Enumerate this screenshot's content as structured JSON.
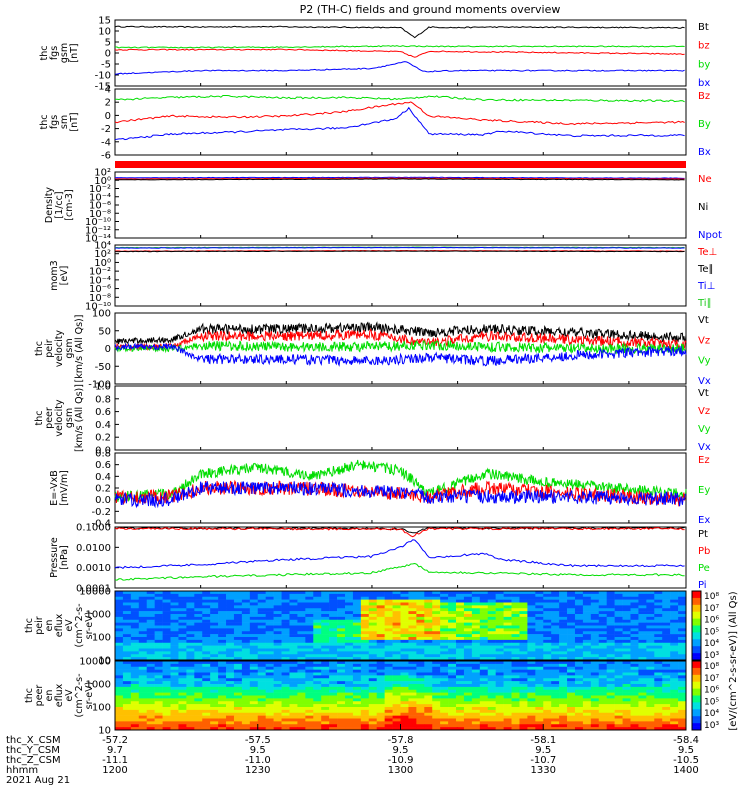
{
  "title": "P2 (TH-C) fields and ground moments overview",
  "colors": {
    "black": "#000000",
    "red": "#ff0000",
    "green": "#00dd00",
    "blue": "#0000ff",
    "lime": "#22cc22"
  },
  "chart_data": [
    {
      "id": "fgs",
      "type": "line",
      "ylabel": [
        "thc",
        "fgs",
        "gsm",
        "[nT]"
      ],
      "yticks": [
        "15",
        "10",
        "5",
        "0",
        "-5",
        "-10",
        "-15"
      ],
      "ylim": [
        -15,
        15
      ],
      "legend": [
        {
          "label": "Bt",
          "color": "#000000"
        },
        {
          "label": "bz",
          "color": "#ff0000"
        },
        {
          "label": "by",
          "color": "#00dd00"
        },
        {
          "label": "bx",
          "color": "#0000ff"
        }
      ],
      "series": [
        {
          "color": "#000000",
          "t": [
            1200,
            1230,
            1250,
            1300,
            1305,
            1310,
            1320,
            1330,
            1400
          ],
          "y": [
            12,
            11.8,
            12,
            11.5,
            7,
            11.8,
            11.5,
            11.8,
            11.5
          ]
        },
        {
          "color": "#ff0000",
          "t": [
            1200,
            1230,
            1260,
            1300,
            1305,
            1310,
            1330,
            1400
          ],
          "y": [
            1.5,
            1.5,
            1.6,
            0.6,
            -2,
            0.8,
            0.5,
            -0.5
          ]
        },
        {
          "color": "#00dd00",
          "t": [
            1200,
            1230,
            1260,
            1300,
            1310,
            1330,
            1400
          ],
          "y": [
            2.5,
            2.5,
            2.7,
            3.2,
            3.0,
            3,
            3
          ]
        },
        {
          "color": "#0000ff",
          "t": [
            1200,
            1230,
            1260,
            1290,
            1302,
            1308,
            1320,
            1360,
            1400
          ],
          "y": [
            -9.5,
            -8,
            -8,
            -7,
            -4,
            -8.5,
            -8,
            -8,
            -8
          ]
        }
      ]
    },
    {
      "id": "fgs-sm",
      "type": "line",
      "ylabel": [
        "thc",
        "fgs",
        "sm",
        "[nT]"
      ],
      "yticks": [
        "4",
        "2",
        "0",
        "-2",
        "-4",
        "-6"
      ],
      "ylim": [
        -7,
        4
      ],
      "legend": [
        {
          "label": "Bz",
          "color": "#ff0000"
        },
        {
          "label": "By",
          "color": "#00dd00"
        },
        {
          "label": "Bx",
          "color": "#0000ff"
        }
      ],
      "series": [
        {
          "color": "#00dd00",
          "t": [
            1200,
            1220,
            1240,
            1260,
            1280,
            1300,
            1310,
            1330,
            1400
          ],
          "y": [
            2.2,
            2.6,
            2.8,
            2.5,
            2.6,
            2.3,
            2.8,
            2.2,
            2.0
          ]
        },
        {
          "color": "#ff0000",
          "t": [
            1200,
            1220,
            1240,
            1260,
            1280,
            1298,
            1304,
            1310,
            1330,
            1360,
            1400
          ],
          "y": [
            -1.5,
            -0.5,
            -0.7,
            -0.5,
            0.2,
            1.5,
            1.8,
            -0.5,
            -1.2,
            -1.8,
            -1.5
          ]
        },
        {
          "color": "#0000ff",
          "t": [
            1200,
            1220,
            1240,
            1260,
            1280,
            1298,
            1303,
            1310,
            1330,
            1335,
            1360,
            1400
          ],
          "y": [
            -4.5,
            -3.5,
            -3.2,
            -2.8,
            -2.5,
            -1,
            0.8,
            -3.5,
            -3.6,
            -3.0,
            -3.8,
            -3.7
          ]
        }
      ]
    },
    {
      "id": "flag-bar",
      "type": "bar",
      "color": "#ff0000"
    },
    {
      "id": "density",
      "type": "line",
      "scale": "log",
      "ylabel": [
        "Density",
        "[1/cc]",
        "[cm-3]"
      ],
      "yticks": [
        "10²",
        "10⁰",
        "10⁻²",
        "10⁻⁴",
        "10⁻⁶",
        "10⁻⁸",
        "10⁻¹⁰",
        "10⁻¹²",
        "10⁻¹⁴"
      ],
      "ylim": [
        -14,
        2
      ],
      "legend": [
        {
          "label": "Ne",
          "color": "#ff0000"
        },
        {
          "label": "Ni",
          "color": "#000000"
        },
        {
          "label": "Npot",
          "color": "#0000ff"
        }
      ],
      "series": [
        {
          "color": "#0000ff",
          "t": [
            1200,
            1300,
            1400
          ],
          "y": [
            0.6,
            0.7,
            0.5
          ]
        },
        {
          "color": "#ff0000",
          "t": [
            1200,
            1300,
            1400
          ],
          "y": [
            0.3,
            0.5,
            0.3
          ]
        },
        {
          "color": "#000000",
          "t": [
            1200,
            1300,
            1400
          ],
          "y": [
            0.1,
            0.3,
            0.1
          ]
        }
      ]
    },
    {
      "id": "temperature",
      "type": "line",
      "scale": "log",
      "ylabel": [
        "mom3",
        "[eV]"
      ],
      "yticks": [
        "10⁴",
        "10²",
        "10⁰",
        "10⁻²",
        "10⁻⁴",
        "10⁻⁶",
        "10⁻⁸",
        "10⁻¹⁰"
      ],
      "ylim": [
        -10,
        4
      ],
      "legend": [
        {
          "label": "Te⊥",
          "color": "#ff0000"
        },
        {
          "label": "Te∥",
          "color": "#000000"
        },
        {
          "label": "Ti⊥",
          "color": "#0000ff"
        },
        {
          "label": "Ti∥",
          "color": "#22cc22"
        }
      ],
      "series": [
        {
          "color": "#22cc22",
          "t": [
            1200,
            1300,
            1400
          ],
          "y": [
            3.4,
            3.5,
            3.4
          ]
        },
        {
          "color": "#0000ff",
          "t": [
            1200,
            1300,
            1400
          ],
          "y": [
            3.3,
            3.4,
            3.3
          ]
        },
        {
          "color": "#ff0000",
          "t": [
            1200,
            1300,
            1400
          ],
          "y": [
            2.6,
            2.7,
            2.6
          ]
        },
        {
          "color": "#000000",
          "t": [
            1200,
            1300,
            1400
          ],
          "y": [
            2.5,
            2.6,
            2.5
          ]
        }
      ]
    },
    {
      "id": "peir-velocity",
      "type": "line",
      "ylabel": [
        "thc",
        "peir",
        "velocity",
        "gsm",
        "[km/s (All Qs)]"
      ],
      "yticks": [
        "100",
        "50",
        "0",
        "-50",
        "-100"
      ],
      "ylim": [
        -100,
        100
      ],
      "legend": [
        {
          "label": "Vt",
          "color": "#000000"
        },
        {
          "label": "Vz",
          "color": "#ff0000"
        },
        {
          "label": "Vy",
          "color": "#00dd00"
        },
        {
          "label": "Vx",
          "color": "#0000ff"
        }
      ],
      "series": [
        {
          "color": "#000000",
          "t": [
            1200,
            1220,
            1230,
            1260,
            1290,
            1310,
            1330,
            1360,
            1400
          ],
          "y": [
            20,
            25,
            55,
            55,
            60,
            45,
            55,
            45,
            30
          ]
        },
        {
          "color": "#ff0000",
          "t": [
            1200,
            1220,
            1230,
            1260,
            1290,
            1310,
            1330,
            1360,
            1400
          ],
          "y": [
            5,
            5,
            35,
            35,
            40,
            15,
            35,
            25,
            10
          ]
        },
        {
          "color": "#00dd00",
          "t": [
            1200,
            1220,
            1230,
            1260,
            1290,
            1310,
            1330,
            1360,
            1400
          ],
          "y": [
            0,
            0,
            8,
            5,
            5,
            10,
            5,
            0,
            0
          ]
        },
        {
          "color": "#0000ff",
          "t": [
            1200,
            1220,
            1230,
            1260,
            1290,
            1310,
            1330,
            1360,
            1400
          ],
          "y": [
            5,
            5,
            -30,
            -30,
            -35,
            -25,
            -35,
            -20,
            -5
          ]
        }
      ]
    },
    {
      "id": "peer-velocity",
      "type": "line",
      "ylabel": [
        "thc",
        "peer",
        "velocity",
        "gsm",
        "[km/s (All Qs)]"
      ],
      "yticks": [
        "1.0",
        "0.8",
        "0.6",
        "0.4",
        "0.2",
        "0.0"
      ],
      "ylim": [
        0,
        1
      ],
      "legend": [
        {
          "label": "Vt",
          "color": "#000000"
        },
        {
          "label": "Vz",
          "color": "#ff0000"
        },
        {
          "label": "Vy",
          "color": "#00dd00"
        },
        {
          "label": "Vx",
          "color": "#0000ff"
        }
      ],
      "series": []
    },
    {
      "id": "efield",
      "type": "line",
      "ylabel": [
        "E=-VxB",
        "[mV/m]"
      ],
      "yticks": [
        "0.8",
        "0.6",
        "0.4",
        "0.2",
        "0.0",
        "-0.2",
        "-0.4"
      ],
      "ylim": [
        -0.4,
        0.8
      ],
      "legend": [
        {
          "label": "Ez",
          "color": "#ff0000"
        },
        {
          "label": "Ey",
          "color": "#00dd00"
        },
        {
          "label": "Ex",
          "color": "#0000ff"
        }
      ],
      "series": [
        {
          "color": "#00dd00",
          "t": [
            1200,
            1220,
            1230,
            1250,
            1270,
            1285,
            1300,
            1310,
            1330,
            1350,
            1400
          ],
          "y": [
            0.05,
            0.1,
            0.45,
            0.55,
            0.4,
            0.6,
            0.5,
            0.1,
            0.45,
            0.3,
            0.1
          ]
        },
        {
          "color": "#ff0000",
          "t": [
            1200,
            1220,
            1230,
            1260,
            1290,
            1310,
            1330,
            1360,
            1400
          ],
          "y": [
            0.05,
            0.05,
            0.2,
            0.2,
            0.15,
            0.05,
            0.2,
            0.1,
            0.0
          ]
        },
        {
          "color": "#0000ff",
          "t": [
            1200,
            1220,
            1230,
            1260,
            1290,
            1310,
            1330,
            1360,
            1400
          ],
          "y": [
            0.0,
            0.0,
            0.2,
            0.2,
            0.15,
            0.05,
            0.05,
            0.05,
            0.0
          ]
        }
      ]
    },
    {
      "id": "pressure",
      "type": "line",
      "scale": "log",
      "ylabel": [
        "Pressure",
        "[nPa]"
      ],
      "yticks": [
        "0.1000",
        "0.0100",
        "0.0010",
        "0.0001"
      ],
      "ylim": [
        -4,
        -1
      ],
      "legend": [
        {
          "label": "Pt",
          "color": "#000000"
        },
        {
          "label": "Pb",
          "color": "#ff0000"
        },
        {
          "label": "Pe",
          "color": "#00dd00"
        },
        {
          "label": "Pi",
          "color": "#0000ff"
        }
      ],
      "series": [
        {
          "color": "#000000",
          "t": [
            1200,
            1300,
            1304,
            1310,
            1400
          ],
          "y": [
            -1.05,
            -1.08,
            -1.3,
            -1.05,
            -1.05
          ]
        },
        {
          "color": "#ff0000",
          "t": [
            1200,
            1300,
            1304,
            1310,
            1400
          ],
          "y": [
            -1.08,
            -1.1,
            -1.45,
            -1.08,
            -1.08
          ]
        },
        {
          "color": "#0000ff",
          "t": [
            1200,
            1230,
            1260,
            1290,
            1300,
            1305,
            1310,
            1330,
            1335,
            1360,
            1400
          ],
          "y": [
            -3.0,
            -2.85,
            -2.6,
            -2.45,
            -2.0,
            -1.6,
            -2.5,
            -2.3,
            -2.6,
            -2.9,
            -2.9
          ]
        },
        {
          "color": "#00dd00",
          "t": [
            1200,
            1230,
            1260,
            1290,
            1300,
            1305,
            1310,
            1360,
            1400
          ],
          "y": [
            -3.6,
            -3.45,
            -3.35,
            -3.25,
            -2.95,
            -2.8,
            -3.2,
            -3.35,
            -3.35
          ]
        }
      ]
    },
    {
      "id": "peir-spectrogram",
      "type": "heatmap",
      "ylabel": [
        "thc",
        "peir",
        "en",
        "eflux",
        "eV",
        "(cm^2-s-",
        "sr-eV)"
      ],
      "yticks": [
        "10000",
        "1000",
        "100",
        "10"
      ],
      "colorbar": {
        "ticks": [
          "10⁸",
          "10⁷",
          "10⁶",
          "10⁵",
          "10⁴",
          "10³"
        ]
      }
    },
    {
      "id": "peer-spectrogram",
      "type": "heatmap",
      "ylabel": [
        "thc",
        "peer",
        "en",
        "eflux",
        "eV",
        "(cm^2-s-",
        "sr-eV)"
      ],
      "yticks": [
        "10000",
        "1000",
        "100",
        "10"
      ],
      "colorbar": {
        "ticks": [
          "10⁸",
          "10⁷",
          "10⁶",
          "10⁵",
          "10⁴",
          "10³"
        ]
      }
    }
  ],
  "colorbar_label": "[eV/(cm^2-s-sr-eV)] (All Qs)",
  "x_axis": {
    "rows": [
      {
        "label": "thc_X_CSM",
        "values": [
          "-57.2",
          "-57.5",
          "-57.8",
          "-58.1",
          "-58.4"
        ]
      },
      {
        "label": "thc_Y_CSM",
        "values": [
          "9.7",
          "9.5",
          "9.5",
          "9.5",
          "9.5"
        ]
      },
      {
        "label": "thc_Z_CSM",
        "values": [
          "-11.1",
          "-11.0",
          "-10.9",
          "-10.7",
          "-10.5"
        ]
      },
      {
        "label": "hhmm",
        "values": [
          "1200",
          "1230",
          "1300",
          "1330",
          "1400"
        ]
      }
    ],
    "date": "2021 Aug 21"
  }
}
